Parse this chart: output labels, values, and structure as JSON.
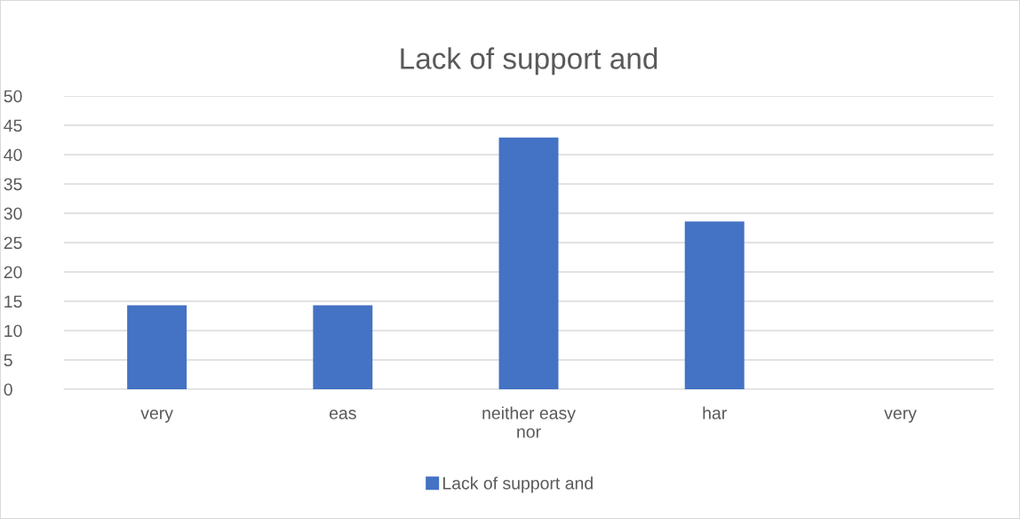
{
  "chart_data": {
    "type": "bar",
    "title": "Lack of support and",
    "categories": [
      "very",
      "eas",
      "neither easy\nnor",
      "har",
      "very"
    ],
    "series": [
      {
        "name": "Lack of support and",
        "color": "#4472c4",
        "values": [
          14.3,
          14.3,
          42.9,
          28.6,
          0
        ]
      }
    ],
    "ylim": [
      0,
      50
    ],
    "yticks": [
      0,
      5,
      10,
      15,
      20,
      25,
      30,
      35,
      40,
      45,
      50
    ],
    "grid": "y",
    "legend": "bottom"
  }
}
